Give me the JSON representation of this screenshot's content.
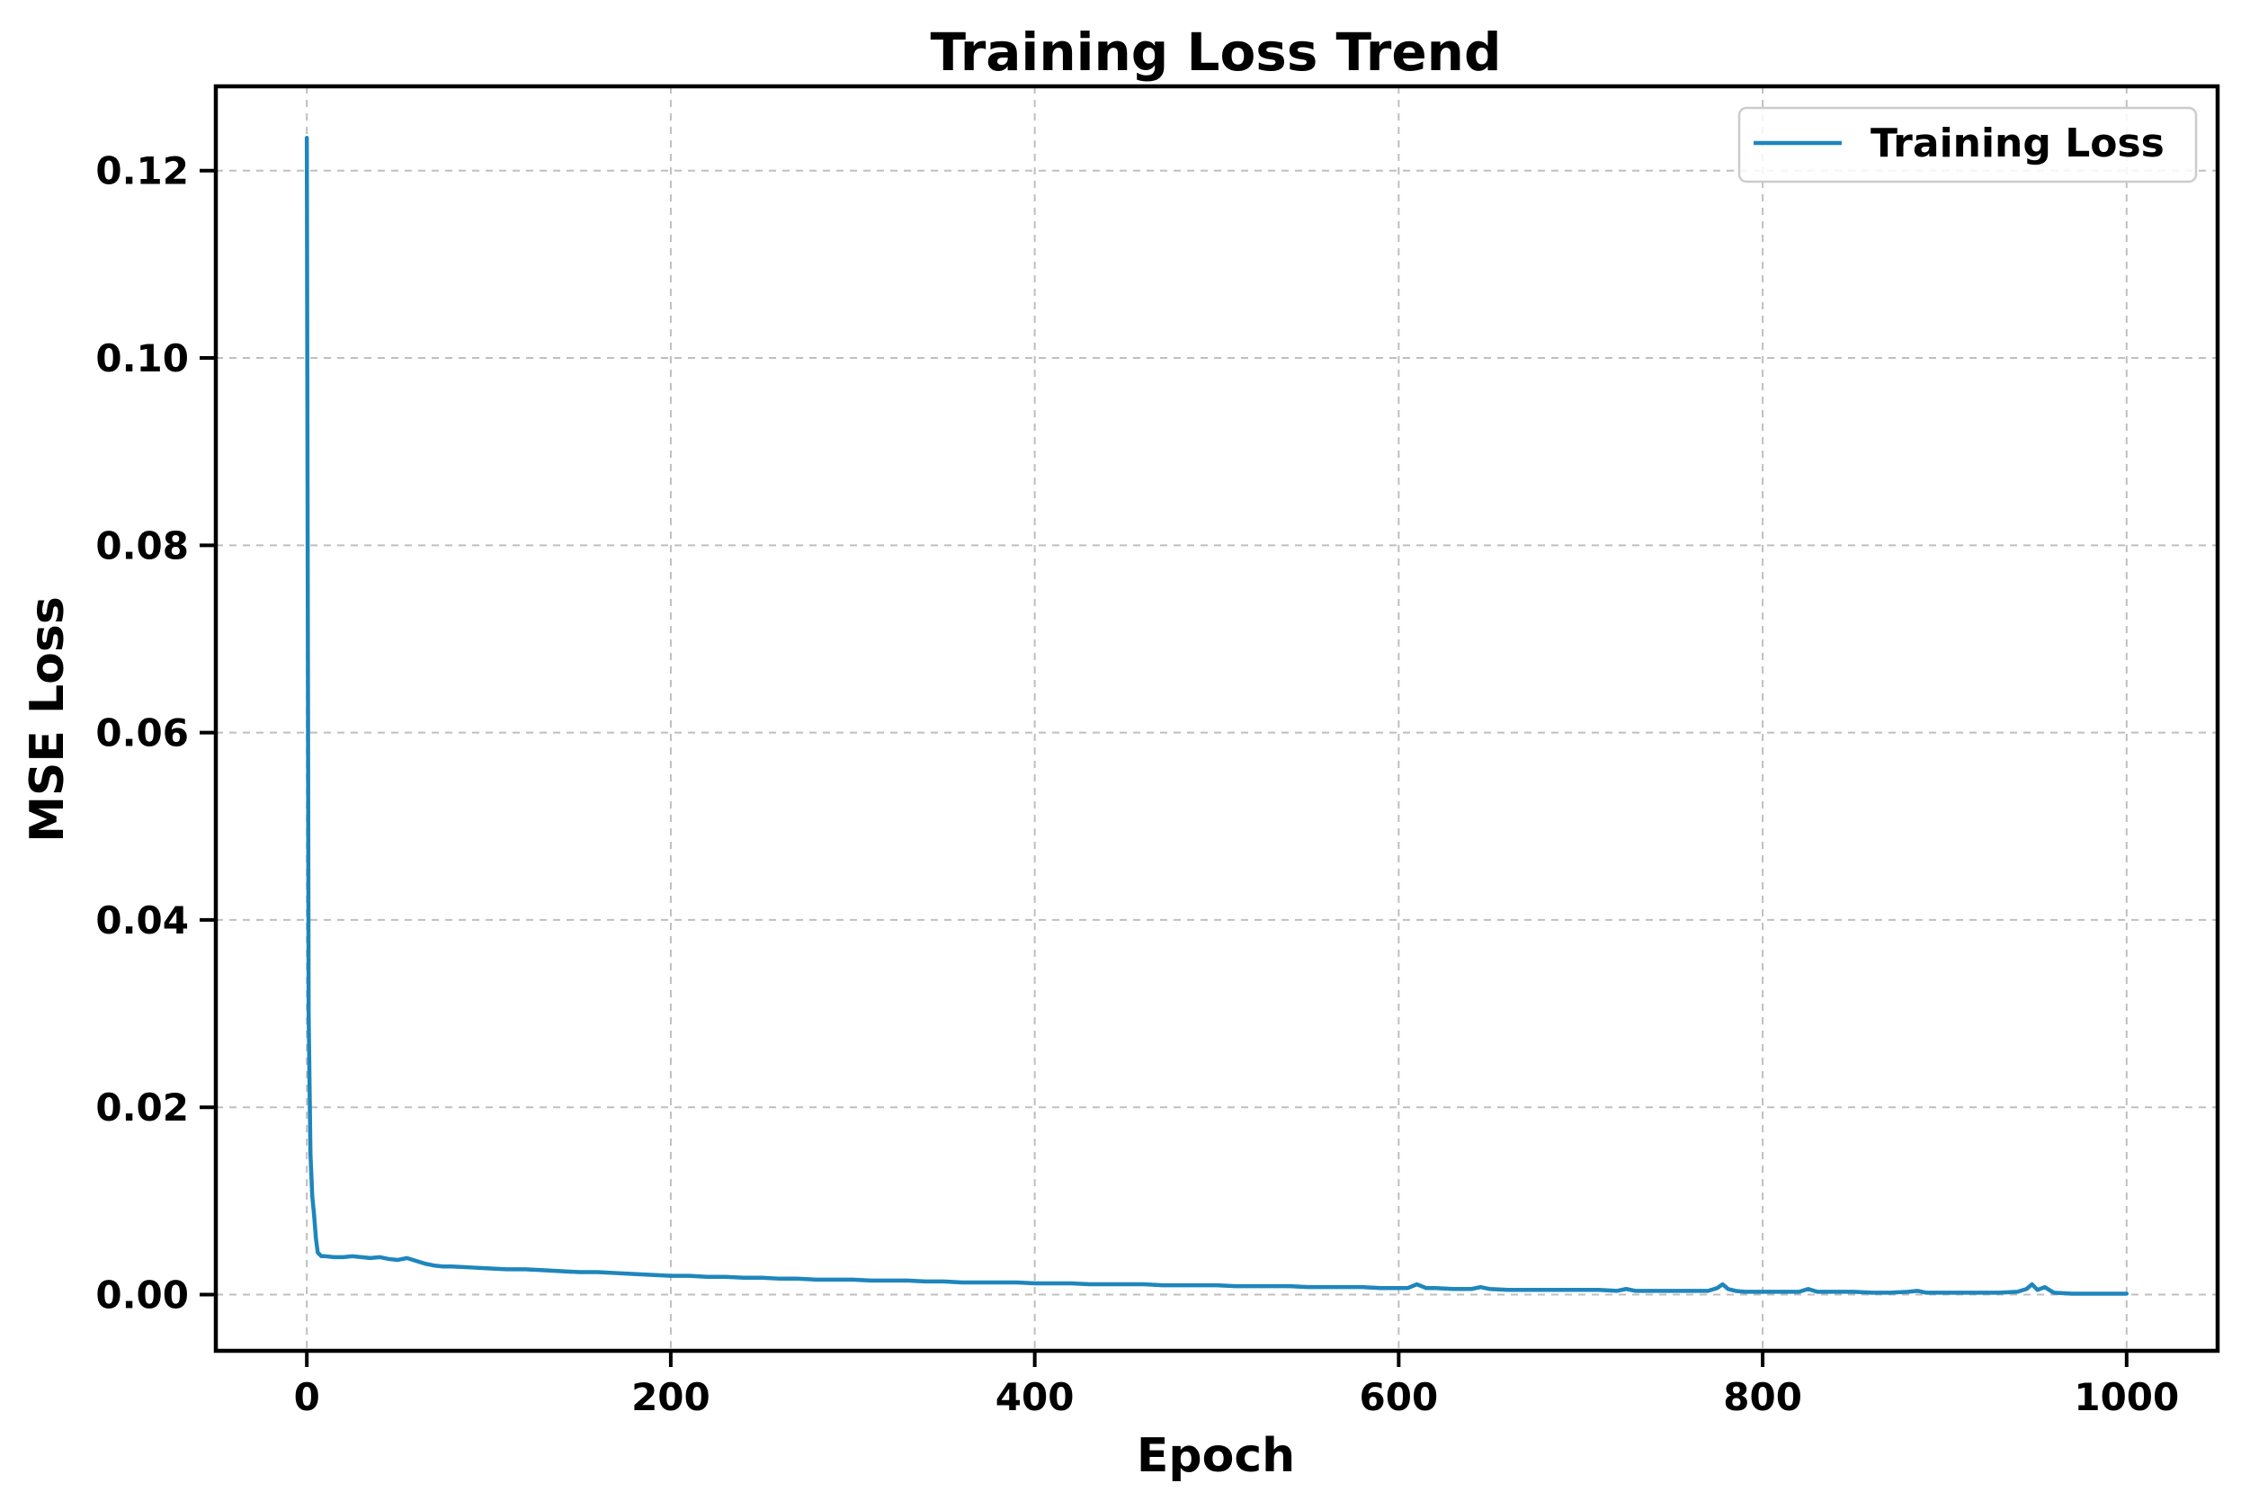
{
  "chart_data": {
    "type": "line",
    "title": "Training Loss Trend",
    "xlabel": "Epoch",
    "ylabel": "MSE Loss",
    "xlim": [
      -50,
      1050
    ],
    "ylim": [
      -0.006,
      0.129
    ],
    "xticks": [
      0,
      200,
      400,
      600,
      800,
      1000
    ],
    "yticks": [
      0.0,
      0.02,
      0.04,
      0.06,
      0.08,
      0.1,
      0.12
    ],
    "xtick_labels": [
      "0",
      "200",
      "400",
      "600",
      "800",
      "1000"
    ],
    "ytick_labels": [
      "0.00",
      "0.02",
      "0.04",
      "0.06",
      "0.08",
      "0.10",
      "0.12"
    ],
    "grid": true,
    "legend_position": "top-right",
    "series": [
      {
        "name": "Training Loss",
        "color": "#1f86bd",
        "x": [
          0,
          1,
          2,
          3,
          4,
          5,
          6,
          8,
          10,
          15,
          20,
          25,
          30,
          35,
          40,
          45,
          50,
          55,
          60,
          65,
          70,
          75,
          80,
          90,
          100,
          110,
          120,
          130,
          140,
          150,
          160,
          170,
          180,
          190,
          200,
          210,
          220,
          230,
          240,
          250,
          260,
          270,
          280,
          290,
          300,
          310,
          320,
          330,
          340,
          350,
          360,
          370,
          380,
          390,
          400,
          410,
          420,
          430,
          440,
          450,
          460,
          470,
          480,
          490,
          500,
          510,
          520,
          530,
          540,
          550,
          560,
          570,
          580,
          590,
          600,
          605,
          610,
          615,
          620,
          630,
          640,
          645,
          650,
          660,
          670,
          680,
          690,
          700,
          710,
          720,
          725,
          730,
          740,
          750,
          760,
          770,
          775,
          778,
          781,
          785,
          790,
          800,
          810,
          820,
          825,
          830,
          840,
          850,
          860,
          870,
          880,
          885,
          890,
          900,
          910,
          920,
          930,
          940,
          945,
          948,
          951,
          955,
          960,
          970,
          980,
          990,
          1000
        ],
        "values": [
          0.1235,
          0.03,
          0.015,
          0.0105,
          0.0085,
          0.006,
          0.0045,
          0.0041,
          0.0041,
          0.004,
          0.004,
          0.0041,
          0.004,
          0.0039,
          0.004,
          0.0038,
          0.0037,
          0.0039,
          0.0036,
          0.0033,
          0.0031,
          0.003,
          0.003,
          0.0029,
          0.0028,
          0.0027,
          0.0027,
          0.0026,
          0.0025,
          0.0024,
          0.0024,
          0.0023,
          0.0022,
          0.0021,
          0.002,
          0.002,
          0.0019,
          0.0019,
          0.0018,
          0.0018,
          0.0017,
          0.0017,
          0.0016,
          0.0016,
          0.0016,
          0.0015,
          0.0015,
          0.0015,
          0.0014,
          0.0014,
          0.0013,
          0.0013,
          0.0013,
          0.0013,
          0.0012,
          0.0012,
          0.0012,
          0.0011,
          0.0011,
          0.0011,
          0.0011,
          0.001,
          0.001,
          0.001,
          0.001,
          0.0009,
          0.0009,
          0.0009,
          0.0009,
          0.0008,
          0.0008,
          0.0008,
          0.0008,
          0.0007,
          0.0007,
          0.0007,
          0.0011,
          0.0007,
          0.0007,
          0.0006,
          0.0006,
          0.0008,
          0.0006,
          0.0005,
          0.0005,
          0.0005,
          0.0005,
          0.0005,
          0.0005,
          0.0004,
          0.0006,
          0.0004,
          0.0004,
          0.0004,
          0.0004,
          0.0004,
          0.0007,
          0.0011,
          0.0006,
          0.0004,
          0.0003,
          0.0003,
          0.0003,
          0.0003,
          0.0006,
          0.0003,
          0.0003,
          0.0003,
          0.0002,
          0.0002,
          0.0003,
          0.0004,
          0.0002,
          0.0002,
          0.0002,
          0.0002,
          0.0002,
          0.0003,
          0.0006,
          0.0011,
          0.0005,
          0.0008,
          0.0002,
          0.0001,
          0.0001,
          0.0001,
          0.0001
        ]
      }
    ]
  }
}
